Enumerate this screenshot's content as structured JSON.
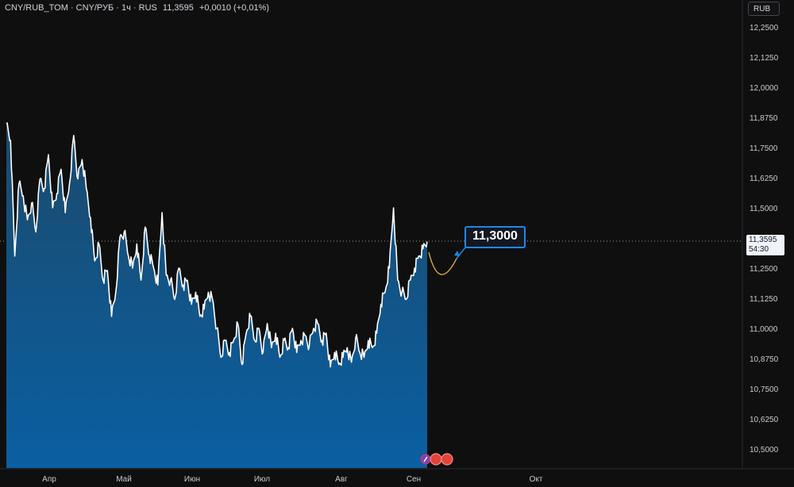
{
  "legend": {
    "symbol": "CNY/RUB_TOM · CNY/РУБ · 1ч · RUS",
    "price": "11,3595",
    "change": "+0,0010 (+0,01%)"
  },
  "currency_button": "RUB",
  "price_badge": {
    "price": "11,3595",
    "countdown": "54:30"
  },
  "target_label": "11,3000",
  "colors": {
    "background": "#0f0f0f",
    "line": "#ffffff",
    "area_top": "#1b4a6b",
    "area_bottom": "#0a5fa3",
    "projection": "#f5c542",
    "target_border": "#1e88e5"
  },
  "icons": [
    "flash-icon",
    "event-dot-icon",
    "event-dot-icon"
  ],
  "chart_data": {
    "type": "area",
    "title": "",
    "xlabel": "",
    "ylabel": "",
    "x_ticks": [
      "Апр",
      "Май",
      "Июн",
      "Июл",
      "Авг",
      "Сен",
      "Окт"
    ],
    "y_ticks": [
      "12,2500",
      "12,1250",
      "12,0000",
      "11,8750",
      "11,7500",
      "11,6250",
      "11,5000",
      "11,3750",
      "11,2500",
      "11,1250",
      "11,0000",
      "10,8750",
      "10,7500",
      "10,6250",
      "10,5000"
    ],
    "ylim": [
      10.45,
      12.28
    ],
    "xlim": [
      0,
      1
    ],
    "grid": false,
    "series": [
      {
        "x": [
          0.0,
          0.01,
          0.02,
          0.03,
          0.04,
          0.05,
          0.06,
          0.07,
          0.08,
          0.09,
          0.1,
          0.11,
          0.12,
          0.13,
          0.14,
          0.15,
          0.16,
          0.17,
          0.18,
          0.19,
          0.2,
          0.21,
          0.22,
          0.23,
          0.24,
          0.25,
          0.26,
          0.27,
          0.28,
          0.29,
          0.3,
          0.31,
          0.32,
          0.33,
          0.34,
          0.35,
          0.36,
          0.37,
          0.38,
          0.39,
          0.4,
          0.41,
          0.42,
          0.43,
          0.44,
          0.45,
          0.46,
          0.47,
          0.48,
          0.49,
          0.5,
          0.51,
          0.52,
          0.53,
          0.54,
          0.55,
          0.56,
          0.57,
          0.58,
          0.59,
          0.6,
          0.61,
          0.62,
          0.63,
          0.64,
          0.65,
          0.66,
          0.67,
          0.68,
          0.69,
          0.7,
          0.71,
          0.72,
          0.73,
          0.74,
          0.75,
          0.76,
          0.77,
          0.78,
          0.79,
          0.8,
          0.81,
          0.82,
          0.83,
          0.84,
          0.85,
          0.86,
          0.87,
          0.88,
          0.89,
          0.9,
          0.91,
          0.92,
          0.93,
          0.94,
          0.95,
          0.96,
          0.97,
          0.98,
          0.99,
          1.0
        ],
        "values": [
          11.85,
          11.78,
          11.3,
          11.6,
          11.55,
          11.45,
          11.52,
          11.4,
          11.62,
          11.58,
          11.72,
          11.5,
          11.56,
          11.66,
          11.48,
          11.6,
          11.8,
          11.62,
          11.7,
          11.58,
          11.46,
          11.28,
          11.35,
          11.2,
          11.24,
          11.05,
          11.15,
          11.38,
          11.4,
          11.3,
          11.25,
          11.35,
          11.2,
          11.42,
          11.3,
          11.25,
          11.18,
          11.48,
          11.22,
          11.2,
          11.12,
          11.25,
          11.18,
          11.2,
          11.1,
          11.15,
          11.05,
          11.08,
          11.15,
          11.12,
          11.0,
          10.88,
          10.95,
          10.9,
          10.95,
          11.02,
          10.85,
          10.98,
          11.05,
          10.95,
          11.0,
          10.9,
          11.02,
          10.92,
          10.98,
          10.88,
          10.95,
          10.92,
          11.0,
          10.9,
          10.95,
          10.97,
          10.93,
          11.0,
          11.02,
          10.95,
          10.98,
          10.84,
          10.9,
          10.85,
          10.88,
          10.92,
          10.86,
          10.96,
          10.9,
          10.88,
          10.95,
          10.92,
          10.98,
          11.1,
          11.15,
          11.25,
          11.5,
          11.2,
          11.15,
          11.12,
          11.2,
          11.25,
          11.3,
          11.33,
          11.36
        ]
      }
    ]
  }
}
